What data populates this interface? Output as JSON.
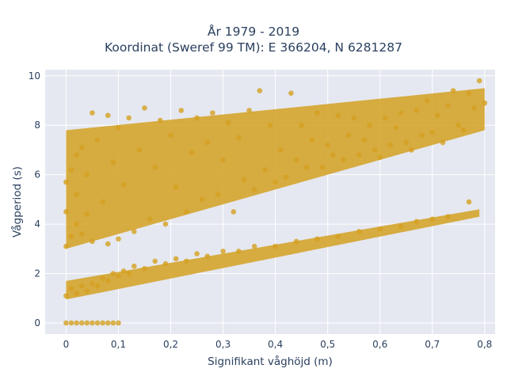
{
  "chart_data": {
    "type": "scatter",
    "title_lines": [
      "År 1979 - 2019",
      "Koordinat (Sweref 99 TM): E 366204, N 6281287"
    ],
    "xlabel": "Signifikant våghöjd (m)",
    "ylabel": "Vågperiod (s)",
    "xlim": [
      -0.04,
      0.82
    ],
    "ylim": [
      -0.45,
      10.25
    ],
    "x_ticks": [
      0,
      0.1,
      0.2,
      0.3,
      0.4,
      0.5,
      0.6,
      0.7,
      0.8
    ],
    "x_tick_labels": [
      "0",
      "0,1",
      "0,2",
      "0,3",
      "0,4",
      "0,5",
      "0,6",
      "0,7",
      "0,8"
    ],
    "y_ticks": [
      0,
      2,
      4,
      6,
      8,
      10
    ],
    "y_tick_labels": [
      "0",
      "2",
      "4",
      "6",
      "8",
      "10"
    ],
    "grid": true,
    "plot_background": "#e5e8f0",
    "marker_color": "#d4a021",
    "marker_opacity": 0.8,
    "series": [
      {
        "values": [
          {
            "x": 0.0,
            "y": 0.0
          },
          {
            "x": 0.01,
            "y": 0.0
          },
          {
            "x": 0.02,
            "y": 0.0
          },
          {
            "x": 0.03,
            "y": 0.0
          },
          {
            "x": 0.04,
            "y": 0.0
          },
          {
            "x": 0.05,
            "y": 0.0
          },
          {
            "x": 0.06,
            "y": 0.0
          },
          {
            "x": 0.07,
            "y": 0.0
          },
          {
            "x": 0.08,
            "y": 0.0
          },
          {
            "x": 0.09,
            "y": 0.0
          },
          {
            "x": 0.1,
            "y": 0.0
          },
          {
            "x": 0.0,
            "y": 1.1
          },
          {
            "x": 0.01,
            "y": 1.4
          },
          {
            "x": 0.02,
            "y": 1.2
          },
          {
            "x": 0.03,
            "y": 1.5
          },
          {
            "x": 0.04,
            "y": 1.3
          },
          {
            "x": 0.05,
            "y": 1.6
          },
          {
            "x": 0.06,
            "y": 1.5
          },
          {
            "x": 0.07,
            "y": 1.8
          },
          {
            "x": 0.08,
            "y": 1.7
          },
          {
            "x": 0.09,
            "y": 2.0
          },
          {
            "x": 0.1,
            "y": 1.9
          },
          {
            "x": 0.11,
            "y": 2.1
          },
          {
            "x": 0.12,
            "y": 2.0
          },
          {
            "x": 0.13,
            "y": 2.3
          },
          {
            "x": 0.15,
            "y": 2.2
          },
          {
            "x": 0.17,
            "y": 2.5
          },
          {
            "x": 0.19,
            "y": 2.4
          },
          {
            "x": 0.21,
            "y": 2.6
          },
          {
            "x": 0.23,
            "y": 2.5
          },
          {
            "x": 0.25,
            "y": 2.8
          },
          {
            "x": 0.27,
            "y": 2.7
          },
          {
            "x": 0.3,
            "y": 2.9
          },
          {
            "x": 0.33,
            "y": 2.9
          },
          {
            "x": 0.36,
            "y": 3.1
          },
          {
            "x": 0.4,
            "y": 3.1
          },
          {
            "x": 0.44,
            "y": 3.3
          },
          {
            "x": 0.48,
            "y": 3.4
          },
          {
            "x": 0.52,
            "y": 3.5
          },
          {
            "x": 0.56,
            "y": 3.7
          },
          {
            "x": 0.6,
            "y": 3.8
          },
          {
            "x": 0.64,
            "y": 3.9
          },
          {
            "x": 0.67,
            "y": 4.1
          },
          {
            "x": 0.7,
            "y": 4.2
          },
          {
            "x": 0.73,
            "y": 4.3
          },
          {
            "x": 0.77,
            "y": 4.9
          },
          {
            "x": 0.0,
            "y": 3.1
          },
          {
            "x": 0.01,
            "y": 3.5
          },
          {
            "x": 0.0,
            "y": 4.5
          },
          {
            "x": 0.0,
            "y": 5.7
          },
          {
            "x": 0.01,
            "y": 6.2
          },
          {
            "x": 0.02,
            "y": 4.0
          },
          {
            "x": 0.02,
            "y": 5.2
          },
          {
            "x": 0.02,
            "y": 6.8
          },
          {
            "x": 0.03,
            "y": 3.6
          },
          {
            "x": 0.03,
            "y": 7.1
          },
          {
            "x": 0.04,
            "y": 4.4
          },
          {
            "x": 0.04,
            "y": 6.0
          },
          {
            "x": 0.05,
            "y": 8.5
          },
          {
            "x": 0.05,
            "y": 3.3
          },
          {
            "x": 0.06,
            "y": 7.4
          },
          {
            "x": 0.07,
            "y": 4.9
          },
          {
            "x": 0.08,
            "y": 8.4
          },
          {
            "x": 0.08,
            "y": 3.2
          },
          {
            "x": 0.09,
            "y": 6.5
          },
          {
            "x": 0.1,
            "y": 3.4
          },
          {
            "x": 0.1,
            "y": 7.9
          },
          {
            "x": 0.11,
            "y": 5.6
          },
          {
            "x": 0.12,
            "y": 8.3
          },
          {
            "x": 0.13,
            "y": 3.7
          },
          {
            "x": 0.14,
            "y": 7.0
          },
          {
            "x": 0.15,
            "y": 8.7
          },
          {
            "x": 0.16,
            "y": 4.2
          },
          {
            "x": 0.17,
            "y": 6.3
          },
          {
            "x": 0.18,
            "y": 8.2
          },
          {
            "x": 0.19,
            "y": 4.0
          },
          {
            "x": 0.2,
            "y": 7.6
          },
          {
            "x": 0.21,
            "y": 5.5
          },
          {
            "x": 0.22,
            "y": 8.6
          },
          {
            "x": 0.23,
            "y": 4.5
          },
          {
            "x": 0.24,
            "y": 6.9
          },
          {
            "x": 0.25,
            "y": 8.3
          },
          {
            "x": 0.26,
            "y": 5.0
          },
          {
            "x": 0.27,
            "y": 7.3
          },
          {
            "x": 0.28,
            "y": 8.5
          },
          {
            "x": 0.29,
            "y": 5.2
          },
          {
            "x": 0.3,
            "y": 6.6
          },
          {
            "x": 0.31,
            "y": 8.1
          },
          {
            "x": 0.32,
            "y": 4.5
          },
          {
            "x": 0.33,
            "y": 7.5
          },
          {
            "x": 0.34,
            "y": 5.8
          },
          {
            "x": 0.35,
            "y": 8.6
          },
          {
            "x": 0.36,
            "y": 5.4
          },
          {
            "x": 0.37,
            "y": 9.4
          },
          {
            "x": 0.38,
            "y": 6.2
          },
          {
            "x": 0.39,
            "y": 8.0
          },
          {
            "x": 0.4,
            "y": 5.7
          },
          {
            "x": 0.41,
            "y": 7.0
          },
          {
            "x": 0.42,
            "y": 5.9
          },
          {
            "x": 0.43,
            "y": 9.3
          },
          {
            "x": 0.44,
            "y": 6.6
          },
          {
            "x": 0.45,
            "y": 8.0
          },
          {
            "x": 0.46,
            "y": 6.3
          },
          {
            "x": 0.47,
            "y": 7.4
          },
          {
            "x": 0.48,
            "y": 8.5
          },
          {
            "x": 0.49,
            "y": 6.3
          },
          {
            "x": 0.5,
            "y": 7.2
          },
          {
            "x": 0.51,
            "y": 6.8
          },
          {
            "x": 0.52,
            "y": 8.4
          },
          {
            "x": 0.53,
            "y": 6.6
          },
          {
            "x": 0.54,
            "y": 7.6
          },
          {
            "x": 0.55,
            "y": 8.3
          },
          {
            "x": 0.56,
            "y": 6.8
          },
          {
            "x": 0.57,
            "y": 7.4
          },
          {
            "x": 0.58,
            "y": 8.0
          },
          {
            "x": 0.59,
            "y": 7.0
          },
          {
            "x": 0.6,
            "y": 6.7
          },
          {
            "x": 0.61,
            "y": 8.3
          },
          {
            "x": 0.62,
            "y": 7.2
          },
          {
            "x": 0.63,
            "y": 7.9
          },
          {
            "x": 0.64,
            "y": 8.5
          },
          {
            "x": 0.65,
            "y": 7.3
          },
          {
            "x": 0.66,
            "y": 7.0
          },
          {
            "x": 0.67,
            "y": 8.6
          },
          {
            "x": 0.68,
            "y": 7.6
          },
          {
            "x": 0.69,
            "y": 9.0
          },
          {
            "x": 0.7,
            "y": 7.7
          },
          {
            "x": 0.71,
            "y": 8.4
          },
          {
            "x": 0.72,
            "y": 7.3
          },
          {
            "x": 0.73,
            "y": 8.8
          },
          {
            "x": 0.74,
            "y": 9.4
          },
          {
            "x": 0.75,
            "y": 8.0
          },
          {
            "x": 0.76,
            "y": 7.8
          },
          {
            "x": 0.77,
            "y": 9.3
          },
          {
            "x": 0.78,
            "y": 8.7
          },
          {
            "x": 0.79,
            "y": 9.8
          },
          {
            "x": 0.8,
            "y": 8.9
          }
        ]
      }
    ],
    "dense_bands": [
      {
        "x_start": 0.0,
        "x_end": 0.79,
        "y_low_start": 0.95,
        "y_low_end": 4.3,
        "y_high_start": 1.7,
        "y_high_end": 4.6
      },
      {
        "x_start": 0.0,
        "x_end": 0.8,
        "y_low_start": 3.0,
        "y_low_end": 7.8,
        "y_high_start": 7.8,
        "y_high_end": 9.5
      }
    ]
  }
}
